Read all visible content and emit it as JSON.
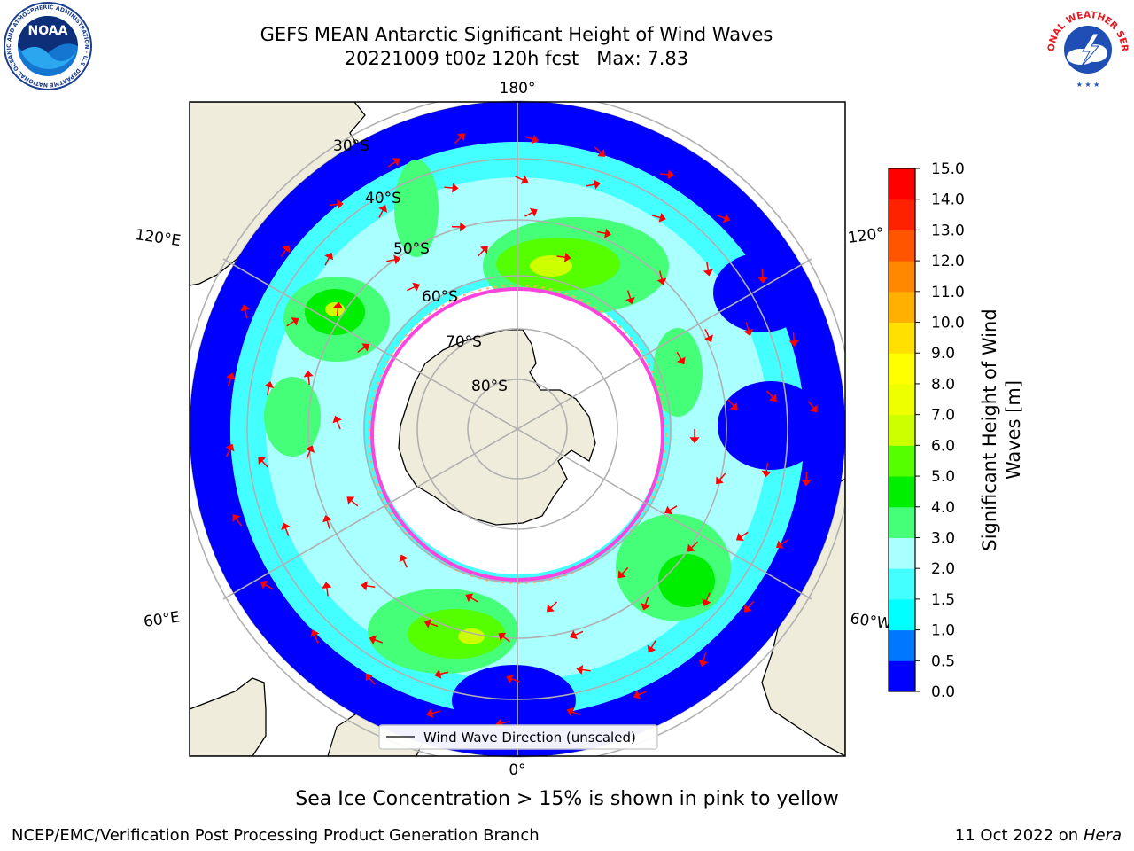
{
  "header": {
    "title_line1": "GEFS MEAN Antarctic Significant Height of Wind Waves",
    "title_line2": "20221009 t00z 120h fcst   Max: 7.83"
  },
  "logos": {
    "left": {
      "name": "noaa-logo",
      "text": "NOAA",
      "ring_text": "NATIONAL OCEANIC AND ATMOSPHERIC ADMINISTRATION · U.S. DEPARTMENT OF COMMERCE"
    },
    "right": {
      "name": "nws-logo",
      "ring_text": "NATIONAL WEATHER SERVICE"
    }
  },
  "map": {
    "projection": "south-polar-stereographic",
    "longitude_labels": {
      "top": "180°",
      "bottom": "0°",
      "left_upper": "120°E",
      "left_lower": "60°E",
      "right_upper": "120°",
      "right_lower": "60°W"
    },
    "latitude_labels": [
      "30°S",
      "40°S",
      "50°S",
      "60°S",
      "70°S",
      "80°S"
    ],
    "legend_label": "Wind Wave Direction (unscaled)",
    "colors": {
      "land": "#efecdc",
      "gridline": "#b0b0b0",
      "arrows": "#ff0000",
      "sea_ice": "#ff44dd"
    }
  },
  "colorbar": {
    "title_line1": "Significant Height of Wind",
    "title_line2": "Waves [m]",
    "ticks": [
      "0.0",
      "0.5",
      "1.0",
      "1.5",
      "2.0",
      "3.0",
      "4.0",
      "5.0",
      "6.0",
      "7.0",
      "8.0",
      "9.0",
      "10.0",
      "11.0",
      "12.0",
      "13.0",
      "14.0",
      "15.0"
    ],
    "colors": [
      "#0000ff",
      "#0077ff",
      "#00ffff",
      "#44ffff",
      "#aaffff",
      "#44ff77",
      "#00ee00",
      "#55ff00",
      "#ccff00",
      "#eeff00",
      "#ffff00",
      "#ffe000",
      "#ffb000",
      "#ff8800",
      "#ff5500",
      "#ff2200",
      "#ff0000"
    ]
  },
  "footer": {
    "caption": "Sea Ice Concentration > 15% is shown in pink to yellow",
    "credit": "NCEP/EMC/Verification Post Processing Product Generation Branch",
    "date": "11 Oct 2022 on ",
    "machine": "Hera"
  }
}
